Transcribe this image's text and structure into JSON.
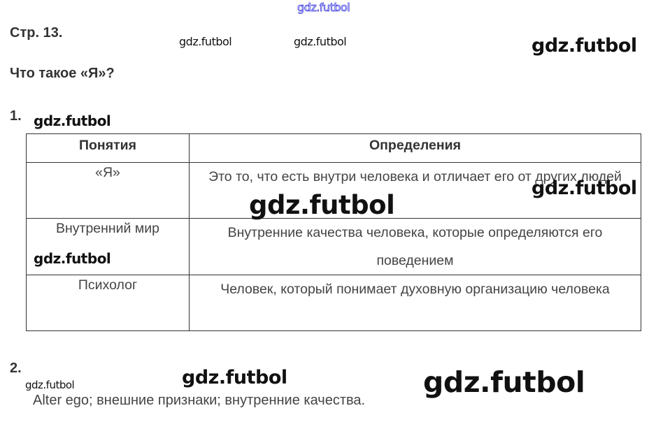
{
  "header": {
    "page": "Стр. 13.",
    "title": "Что такое «Я»?"
  },
  "task1": {
    "number": "1.",
    "columns": [
      "Понятия",
      "Определения"
    ],
    "rows": [
      [
        "«Я»",
        "Это то, что есть внутри человека и отличает его от других людей"
      ],
      [
        "Внутренний мир",
        "Внутренние качества человека, которые определяются его поведением"
      ],
      [
        "Психолог",
        "Человек, который понимает духовную организацию человека"
      ]
    ]
  },
  "task2": {
    "number": "2.",
    "answer": "Alter ego; внешние признаки; внутренние качества."
  },
  "watermark": "gdz.futbol"
}
